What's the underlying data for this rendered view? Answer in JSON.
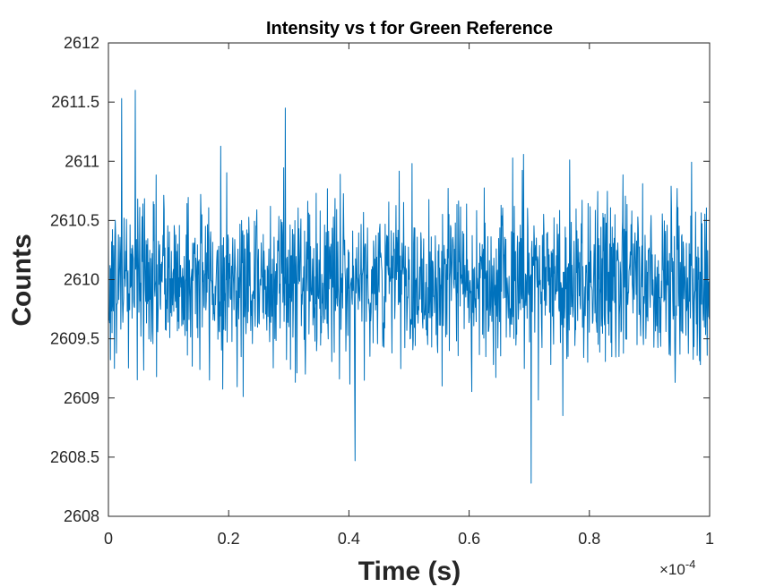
{
  "chart_data": {
    "type": "line",
    "title": "Intensity vs t for Green Reference",
    "xlabel": "Time (s)",
    "ylabel": "Counts",
    "x_exponent_label": "×10",
    "x_exponent_power": "-4",
    "xlim": [
      0,
      1
    ],
    "ylim": [
      2608,
      2612
    ],
    "x_ticks": [
      0,
      0.2,
      0.4,
      0.6,
      0.8,
      1
    ],
    "x_tick_labels": [
      "0",
      "0.2",
      "0.4",
      "0.6",
      "0.8",
      "1"
    ],
    "y_ticks": [
      2608,
      2608.5,
      2609,
      2609.5,
      2610,
      2610.5,
      2611,
      2611.5,
      2612
    ],
    "y_tick_labels": [
      "2608",
      "2608.5",
      "2609",
      "2609.5",
      "2610",
      "2610.5",
      "2611",
      "2611.5",
      "2612"
    ],
    "grid": false,
    "legend": "none",
    "series": [
      {
        "color": "#0072BD",
        "n_points": 1500,
        "mean": 2610.0,
        "std": 0.35,
        "max": 2611.6,
        "min": 2608.28,
        "notable_points": [
          {
            "x": 0.045,
            "y": 2611.6
          },
          {
            "x": 0.022,
            "y": 2611.53
          },
          {
            "x": 0.294,
            "y": 2611.45
          },
          {
            "x": 0.703,
            "y": 2608.28
          },
          {
            "x": 0.41,
            "y": 2608.47
          },
          {
            "x": 0.01,
            "y": 2609.25
          }
        ]
      }
    ]
  }
}
